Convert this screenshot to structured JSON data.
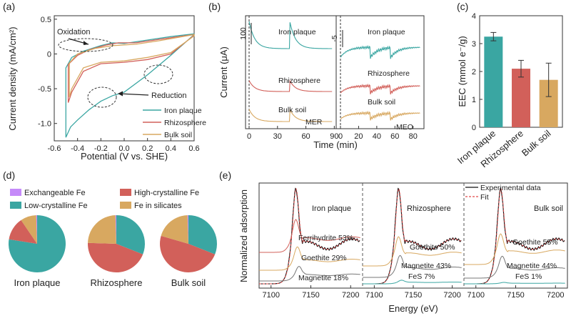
{
  "colors": {
    "iron": "#3aa6a2",
    "rhizo": "#d2605a",
    "bulk": "#d8a860",
    "exch": "#c58af9",
    "fit": "#e24a4a",
    "exp": "#111111"
  },
  "chart_data": [
    {
      "id": "a",
      "label": "(a)",
      "type": "line",
      "xlabel": "Potential (V vs. SHE)",
      "ylabel": "Current density (mA/cm²)",
      "xlim": [
        -0.6,
        0.6
      ],
      "ylim": [
        -1.25,
        0.55
      ],
      "xticks": [
        "-0.6",
        "-0.4",
        "-0.2",
        "0.0",
        "0.2",
        "0.4",
        "0.6"
      ],
      "yticks": [
        "-1.0",
        "-0.5",
        "0",
        "0.5"
      ],
      "ytick_values": [
        -1.0,
        -0.5,
        0,
        0.5
      ],
      "annotations": [
        "Oxidation",
        "Reduction"
      ],
      "legend": [
        "Iron plaque",
        "Rhizosphere",
        "Bulk soil"
      ],
      "series": [
        {
          "name": "Iron plaque",
          "upper": [
            [
              -0.5,
              -0.2
            ],
            [
              -0.45,
              -0.05
            ],
            [
              -0.35,
              0.04
            ],
            [
              -0.2,
              0.12
            ],
            [
              -0.1,
              0.16
            ],
            [
              0.0,
              0.15
            ],
            [
              0.2,
              0.2
            ],
            [
              0.4,
              0.25
            ],
            [
              0.6,
              0.29
            ]
          ],
          "lower": [
            [
              0.6,
              0.28
            ],
            [
              0.4,
              -0.02
            ],
            [
              0.2,
              -0.3
            ],
            [
              0.0,
              -0.55
            ],
            [
              -0.1,
              -0.6
            ],
            [
              -0.2,
              -0.68
            ],
            [
              -0.3,
              -0.8
            ],
            [
              -0.4,
              -0.95
            ],
            [
              -0.46,
              -1.05
            ],
            [
              -0.5,
              -1.2
            ]
          ]
        },
        {
          "name": "Rhizosphere",
          "upper": [
            [
              -0.48,
              -0.15
            ],
            [
              -0.4,
              -0.02
            ],
            [
              -0.3,
              0.06
            ],
            [
              -0.15,
              0.13
            ],
            [
              -0.05,
              0.16
            ],
            [
              0.1,
              0.16
            ],
            [
              0.3,
              0.21
            ],
            [
              0.6,
              0.28
            ]
          ],
          "lower": [
            [
              0.6,
              0.27
            ],
            [
              0.4,
              0.0
            ],
            [
              0.2,
              -0.08
            ],
            [
              0.0,
              -0.12
            ],
            [
              -0.2,
              -0.14
            ],
            [
              -0.35,
              -0.25
            ],
            [
              -0.45,
              -0.55
            ],
            [
              -0.48,
              -0.7
            ]
          ]
        },
        {
          "name": "Bulk soil",
          "upper": [
            [
              -0.47,
              -0.13
            ],
            [
              -0.4,
              0.0
            ],
            [
              -0.25,
              0.08
            ],
            [
              -0.1,
              0.12
            ],
            [
              0.1,
              0.14
            ],
            [
              0.3,
              0.19
            ],
            [
              0.6,
              0.28
            ]
          ],
          "lower": [
            [
              0.6,
              0.26
            ],
            [
              0.4,
              0.02
            ],
            [
              0.2,
              -0.05
            ],
            [
              0.0,
              -0.1
            ],
            [
              -0.2,
              -0.12
            ],
            [
              -0.35,
              -0.2
            ],
            [
              -0.45,
              -0.5
            ],
            [
              -0.47,
              -0.62
            ]
          ]
        }
      ]
    },
    {
      "id": "b",
      "label": "(b)",
      "type": "line",
      "xlabel": "Time (min)",
      "ylabel": "Current (μA)",
      "panels": [
        {
          "mode": "MER",
          "xticks": [
            "0",
            "30",
            "60",
            "90"
          ],
          "xtick_values": [
            0,
            30,
            60,
            90
          ],
          "xlim": [
            -2,
            92
          ],
          "scalebar": "100",
          "traces": [
            {
              "name": "Iron plaque",
              "pulse": "up",
              "amp": 1.0
            },
            {
              "name": "Rhizosphere",
              "pulse": "up",
              "amp": 0.4
            },
            {
              "name": "Bulk soil",
              "pulse": "up",
              "amp": 0.45
            }
          ]
        },
        {
          "mode": "MEO",
          "xticks": [
            "0",
            "20",
            "40",
            "60",
            "80"
          ],
          "xtick_values": [
            0,
            20,
            40,
            60,
            80
          ],
          "xlim": [
            -2,
            92
          ],
          "scalebar": "-5",
          "traces": [
            {
              "name": "Iron plaque",
              "pulse": "down",
              "amp": 1.0
            },
            {
              "name": "Rhizosphere",
              "pulse": "down",
              "amp": 0.7
            },
            {
              "name": "Bulk soil",
              "pulse": "down",
              "amp": 0.6
            }
          ]
        }
      ]
    },
    {
      "id": "c",
      "label": "(c)",
      "type": "bar",
      "ylabel": "EEC (mmol e⁻/g)",
      "ylim": [
        0,
        4
      ],
      "yticks": [
        "0",
        "1",
        "2",
        "3",
        "4"
      ],
      "ytick_values": [
        0,
        1,
        2,
        3,
        4
      ],
      "categories": [
        "Iron plaque",
        "Rhizosphere",
        "Bulk soil"
      ],
      "values": [
        3.25,
        2.1,
        1.7
      ],
      "errors": [
        0.15,
        0.3,
        0.6
      ]
    },
    {
      "id": "d",
      "label": "(d)",
      "type": "pie",
      "legend": [
        "Exchangeable Fe",
        "High-crystalline Fe",
        "Low-crystalline Fe",
        "Fe in silicates"
      ],
      "pies": [
        {
          "name": "Iron plaque",
          "values": {
            "Exchangeable Fe": 0.5,
            "High-crystalline Fe": 13,
            "Low-crystalline Fe": 77.5,
            "Fe in silicates": 9
          }
        },
        {
          "name": "Rhizosphere",
          "values": {
            "Exchangeable Fe": 0.5,
            "High-crystalline Fe": 44.5,
            "Low-crystalline Fe": 31,
            "Fe in silicates": 24
          }
        },
        {
          "name": "Bulk soil",
          "values": {
            "Exchangeable Fe": 0.5,
            "High-crystalline Fe": 48.5,
            "Low-crystalline Fe": 31,
            "Fe in silicates": 20
          }
        }
      ]
    },
    {
      "id": "e",
      "label": "(e)",
      "type": "line",
      "xlabel": "Energy (eV)",
      "ylabel": "Normalized adsorption",
      "legend": [
        "Experimental data",
        "Fit"
      ],
      "xlim": [
        7085,
        7215
      ],
      "xticks": [
        "7100",
        "7150",
        "7200"
      ],
      "xtick_values": [
        7100,
        7150,
        7200
      ],
      "panels": [
        {
          "name": "Iron plaque",
          "components": [
            "Ferrihydrite 53%",
            "Goethite 29%",
            "Magnetite 18%"
          ]
        },
        {
          "name": "Rhizosphere",
          "components": [
            "Goethite 50%",
            "Magnetite 43%",
            "FeS 7%"
          ]
        },
        {
          "name": "Bulk soil",
          "components": [
            "Goethite 55%",
            "Magnetite 44%",
            "FeS 1%"
          ]
        }
      ]
    }
  ]
}
